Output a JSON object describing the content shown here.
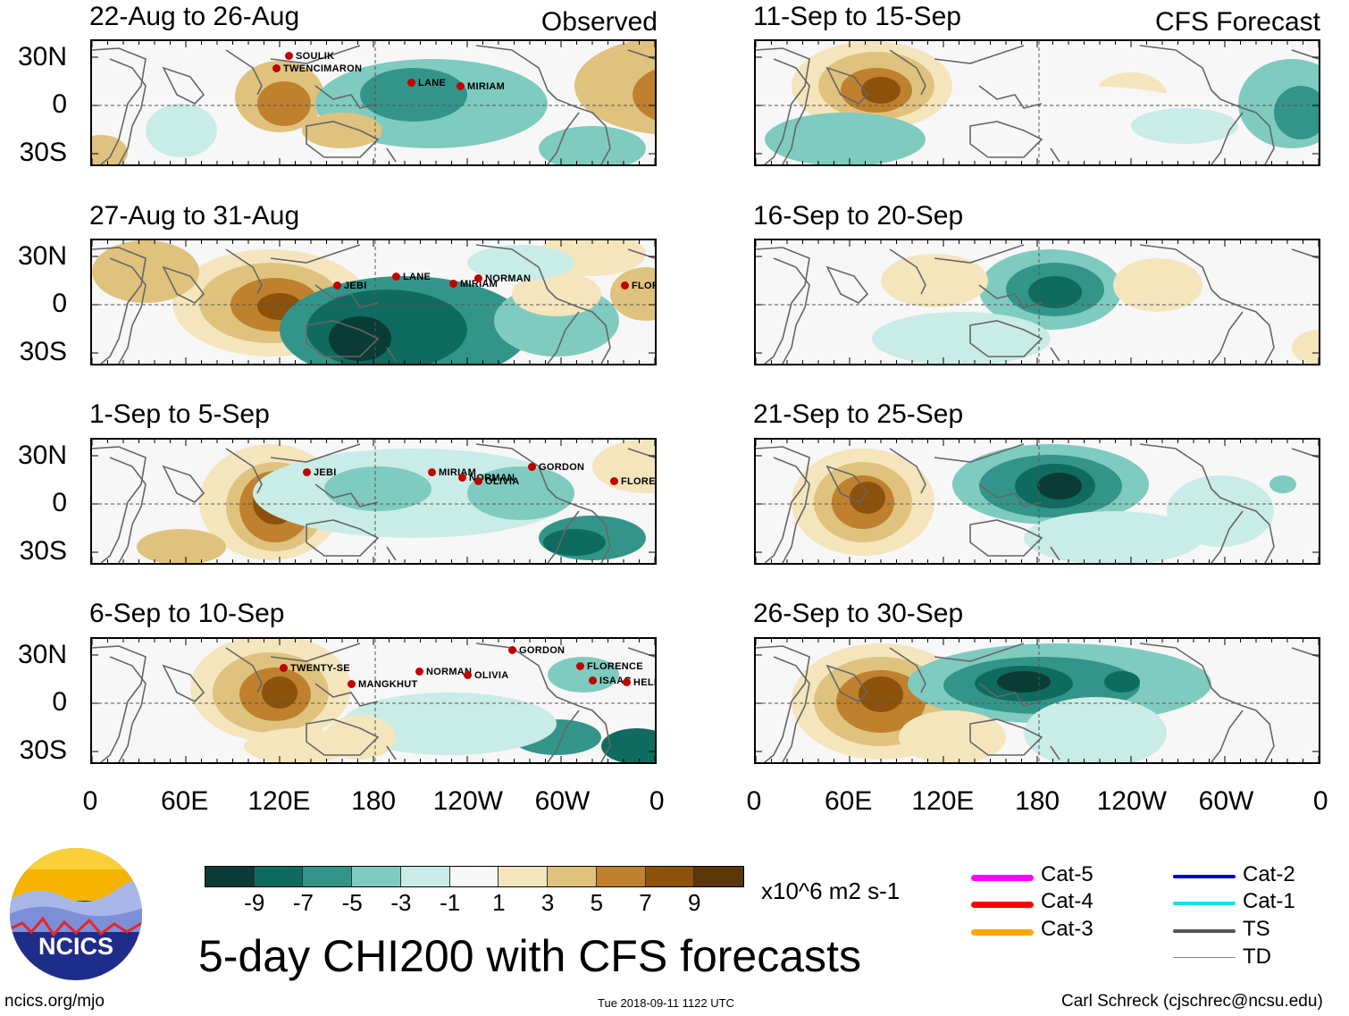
{
  "header": {
    "left": "Observed",
    "right": "CFS Forecast"
  },
  "observed_panels": [
    {
      "title": "22-Aug to 26-Aug",
      "storms": [
        "SOULIK",
        "TWENCIMARON",
        "LANE",
        "MIRIAM"
      ]
    },
    {
      "title": "27-Aug to 31-Aug",
      "storms": [
        "JEBI",
        "LANE",
        "MIRIAM",
        "NORMAN",
        "FLORENCE"
      ]
    },
    {
      "title": "1-Sep to 5-Sep",
      "storms": [
        "JEBI",
        "MIRIAM",
        "NORMAN",
        "OLIVIA",
        "GORDON",
        "FLORENCE"
      ]
    },
    {
      "title": "6-Sep to 10-Sep",
      "storms": [
        "TWENTY-SE",
        "MANGKHUT",
        "NORMAN",
        "OLIVIA",
        "GORDON",
        "FLORENCE",
        "ISAAC",
        "HELENE"
      ]
    }
  ],
  "forecast_panels": [
    {
      "title": "11-Sep to 15-Sep"
    },
    {
      "title": "16-Sep to 20-Sep"
    },
    {
      "title": "21-Sep to 25-Sep"
    },
    {
      "title": "26-Sep to 30-Sep"
    }
  ],
  "y_axis_labels": [
    "30N",
    "0",
    "30S"
  ],
  "x_axis_labels": [
    "0",
    "60E",
    "120E",
    "180",
    "120W",
    "60W",
    "0"
  ],
  "colorbar": {
    "colors": [
      "#0b3b35",
      "#0f6b60",
      "#33958a",
      "#7fcbc0",
      "#c9ece6",
      "#f7f7f7",
      "#f5e5bd",
      "#dfc27d",
      "#bf812d",
      "#8c510a",
      "#5a3608"
    ],
    "labels": [
      "-9",
      "-7",
      "-5",
      "-3",
      "-1",
      "1",
      "3",
      "5",
      "7",
      "9"
    ],
    "units": "x10^6 m2 s-1"
  },
  "legend": [
    {
      "label": "Cat-5",
      "color": "#ff00ff",
      "weight": "thick"
    },
    {
      "label": "Cat-4",
      "color": "#ff0000",
      "weight": "thick"
    },
    {
      "label": "Cat-3",
      "color": "#ffa500",
      "weight": "thick"
    },
    {
      "label": "Cat-2",
      "color": "#0000cc",
      "weight": "medium"
    },
    {
      "label": "Cat-1",
      "color": "#00e5ee",
      "weight": "medium"
    },
    {
      "label": "TS",
      "color": "#555555",
      "weight": "medium"
    },
    {
      "label": "TD",
      "color": "#888888",
      "weight": "thin"
    }
  ],
  "logo": {
    "text": "NCICS"
  },
  "main_title": "5-day CHI200 with CFS forecasts",
  "footer": {
    "left": "ncics.org/mjo",
    "center": "Tue 2018-09-11 1122 UTC",
    "right": "Carl Schreck (cjschrec@ncsu.edu)"
  }
}
